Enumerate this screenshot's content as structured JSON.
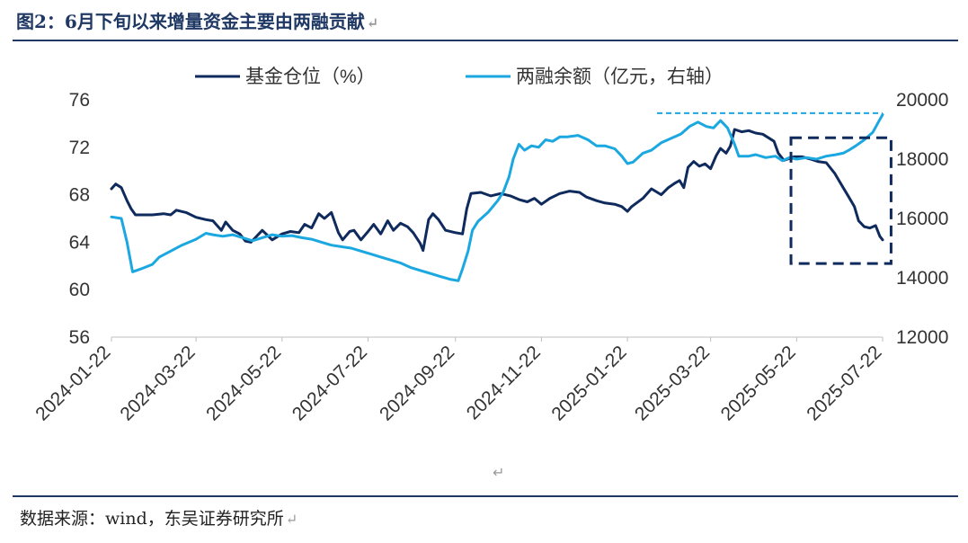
{
  "title": "图2：6月下旬以来增量资金主要由两融贡献",
  "source": "数据来源：wind，东吴证券研究所",
  "return_mark": "↵",
  "chart_data": {
    "type": "line",
    "legend_placement": "top",
    "grid": false,
    "x_ticks": [
      "2024-01-22",
      "2024-03-22",
      "2024-05-22",
      "2024-07-22",
      "2024-09-22",
      "2024-11-22",
      "2025-01-22",
      "2025-03-22",
      "2025-05-22",
      "2025-07-22"
    ],
    "x_range": [
      "2024-01-22",
      "2025-07-22"
    ],
    "y_left": {
      "ticks": [
        56,
        60,
        64,
        68,
        72,
        76
      ],
      "range": [
        56,
        76
      ]
    },
    "y_right": {
      "ticks": [
        12000,
        14000,
        16000,
        18000,
        20000
      ],
      "range": [
        12000,
        20000
      ]
    },
    "series": [
      {
        "name": "基金仓位（%）",
        "axis": "left",
        "color": "#0f2a5c",
        "points": [
          [
            "2024-01-22",
            68.5
          ],
          [
            "2024-01-25",
            68.9
          ],
          [
            "2024-01-29",
            68.6
          ],
          [
            "2024-02-02",
            67.5
          ],
          [
            "2024-02-05",
            66.8
          ],
          [
            "2024-02-08",
            66.3
          ],
          [
            "2024-02-20",
            66.3
          ],
          [
            "2024-02-28",
            66.4
          ],
          [
            "2024-03-04",
            66.3
          ],
          [
            "2024-03-08",
            66.7
          ],
          [
            "2024-03-15",
            66.5
          ],
          [
            "2024-03-22",
            66.1
          ],
          [
            "2024-03-29",
            65.9
          ],
          [
            "2024-04-03",
            65.8
          ],
          [
            "2024-04-09",
            65.0
          ],
          [
            "2024-04-12",
            65.7
          ],
          [
            "2024-04-17",
            65.0
          ],
          [
            "2024-04-22",
            64.7
          ],
          [
            "2024-04-26",
            64.1
          ],
          [
            "2024-04-30",
            64.0
          ],
          [
            "2024-05-08",
            65.0
          ],
          [
            "2024-05-15",
            64.2
          ],
          [
            "2024-05-22",
            64.7
          ],
          [
            "2024-05-28",
            64.9
          ],
          [
            "2024-06-03",
            64.8
          ],
          [
            "2024-06-07",
            65.5
          ],
          [
            "2024-06-12",
            65.2
          ],
          [
            "2024-06-17",
            66.4
          ],
          [
            "2024-06-21",
            66.0
          ],
          [
            "2024-06-26",
            66.5
          ],
          [
            "2024-07-01",
            64.8
          ],
          [
            "2024-07-04",
            64.2
          ],
          [
            "2024-07-09",
            64.9
          ],
          [
            "2024-07-12",
            65.0
          ],
          [
            "2024-07-17",
            64.2
          ],
          [
            "2024-07-22",
            64.9
          ],
          [
            "2024-07-26",
            65.5
          ],
          [
            "2024-07-31",
            64.7
          ],
          [
            "2024-08-05",
            65.8
          ],
          [
            "2024-08-09",
            65.0
          ],
          [
            "2024-08-14",
            65.6
          ],
          [
            "2024-08-19",
            65.3
          ],
          [
            "2024-08-23",
            64.8
          ],
          [
            "2024-08-28",
            63.9
          ],
          [
            "2024-08-30",
            63.3
          ],
          [
            "2024-09-03",
            65.9
          ],
          [
            "2024-09-06",
            66.4
          ],
          [
            "2024-09-10",
            65.9
          ],
          [
            "2024-09-15",
            65.0
          ],
          [
            "2024-09-22",
            64.8
          ],
          [
            "2024-09-27",
            64.7
          ],
          [
            "2024-09-30",
            66.8
          ],
          [
            "2024-10-03",
            68.1
          ],
          [
            "2024-10-10",
            68.2
          ],
          [
            "2024-10-17",
            67.9
          ],
          [
            "2024-10-24",
            68.1
          ],
          [
            "2024-10-31",
            67.9
          ],
          [
            "2024-11-06",
            67.6
          ],
          [
            "2024-11-12",
            67.4
          ],
          [
            "2024-11-17",
            67.7
          ],
          [
            "2024-11-22",
            67.2
          ],
          [
            "2024-11-28",
            67.7
          ],
          [
            "2024-12-05",
            68.1
          ],
          [
            "2024-12-12",
            68.3
          ],
          [
            "2024-12-19",
            68.2
          ],
          [
            "2024-12-24",
            67.8
          ],
          [
            "2024-12-31",
            67.5
          ],
          [
            "2025-01-06",
            67.3
          ],
          [
            "2025-01-13",
            67.2
          ],
          [
            "2025-01-18",
            67.0
          ],
          [
            "2025-01-22",
            66.6
          ],
          [
            "2025-01-25",
            67.0
          ],
          [
            "2025-02-02",
            67.7
          ],
          [
            "2025-02-08",
            68.5
          ],
          [
            "2025-02-15",
            68.0
          ],
          [
            "2025-02-20",
            68.6
          ],
          [
            "2025-02-25",
            69.0
          ],
          [
            "2025-02-28",
            69.2
          ],
          [
            "2025-03-03",
            68.6
          ],
          [
            "2025-03-06",
            70.3
          ],
          [
            "2025-03-10",
            70.8
          ],
          [
            "2025-03-14",
            70.4
          ],
          [
            "2025-03-18",
            70.6
          ],
          [
            "2025-03-22",
            70.2
          ],
          [
            "2025-03-26",
            71.3
          ],
          [
            "2025-03-29",
            71.9
          ],
          [
            "2025-04-02",
            71.5
          ],
          [
            "2025-04-05",
            72.1
          ],
          [
            "2025-04-08",
            73.5
          ],
          [
            "2025-04-13",
            73.3
          ],
          [
            "2025-04-18",
            73.4
          ],
          [
            "2025-04-23",
            73.2
          ],
          [
            "2025-04-28",
            73.1
          ],
          [
            "2025-05-02",
            72.8
          ],
          [
            "2025-05-06",
            72.5
          ],
          [
            "2025-05-09",
            71.5
          ],
          [
            "2025-05-13",
            70.9
          ],
          [
            "2025-05-20",
            71.2
          ],
          [
            "2025-05-26",
            71.2
          ],
          [
            "2025-06-01",
            71.0
          ],
          [
            "2025-06-06",
            70.8
          ],
          [
            "2025-06-12",
            70.7
          ],
          [
            "2025-06-18",
            69.8
          ],
          [
            "2025-06-21",
            69.2
          ],
          [
            "2025-06-24",
            68.6
          ],
          [
            "2025-06-28",
            67.8
          ],
          [
            "2025-07-02",
            67.0
          ],
          [
            "2025-07-05",
            65.8
          ],
          [
            "2025-07-09",
            65.3
          ],
          [
            "2025-07-13",
            65.2
          ],
          [
            "2025-07-17",
            65.4
          ],
          [
            "2025-07-20",
            64.5
          ],
          [
            "2025-07-22",
            64.2
          ]
        ]
      },
      {
        "name": "两融余额（亿元，右轴）",
        "axis": "right",
        "color": "#1ba7e0",
        "points": [
          [
            "2024-01-22",
            16050
          ],
          [
            "2024-01-29",
            16000
          ],
          [
            "2024-02-02",
            15200
          ],
          [
            "2024-02-06",
            14200
          ],
          [
            "2024-02-12",
            14300
          ],
          [
            "2024-02-20",
            14450
          ],
          [
            "2024-02-25",
            14700
          ],
          [
            "2024-03-04",
            14900
          ],
          [
            "2024-03-12",
            15100
          ],
          [
            "2024-03-22",
            15300
          ],
          [
            "2024-03-29",
            15500
          ],
          [
            "2024-04-03",
            15450
          ],
          [
            "2024-04-10",
            15400
          ],
          [
            "2024-04-17",
            15450
          ],
          [
            "2024-04-24",
            15350
          ],
          [
            "2024-05-01",
            15250
          ],
          [
            "2024-05-08",
            15350
          ],
          [
            "2024-05-15",
            15450
          ],
          [
            "2024-05-22",
            15400
          ],
          [
            "2024-05-29",
            15420
          ],
          [
            "2024-06-05",
            15350
          ],
          [
            "2024-06-12",
            15300
          ],
          [
            "2024-06-19",
            15200
          ],
          [
            "2024-06-26",
            15100
          ],
          [
            "2024-07-03",
            15050
          ],
          [
            "2024-07-10",
            15000
          ],
          [
            "2024-07-17",
            14900
          ],
          [
            "2024-07-24",
            14800
          ],
          [
            "2024-07-31",
            14700
          ],
          [
            "2024-08-07",
            14600
          ],
          [
            "2024-08-14",
            14500
          ],
          [
            "2024-08-21",
            14350
          ],
          [
            "2024-08-28",
            14250
          ],
          [
            "2024-09-04",
            14150
          ],
          [
            "2024-09-11",
            14050
          ],
          [
            "2024-09-18",
            13950
          ],
          [
            "2024-09-24",
            13900
          ],
          [
            "2024-09-27",
            14300
          ],
          [
            "2024-10-01",
            14900
          ],
          [
            "2024-10-04",
            15600
          ],
          [
            "2024-10-08",
            15900
          ],
          [
            "2024-10-15",
            16200
          ],
          [
            "2024-10-22",
            16600
          ],
          [
            "2024-10-26",
            16900
          ],
          [
            "2024-10-30",
            17400
          ],
          [
            "2024-11-02",
            18000
          ],
          [
            "2024-11-06",
            18500
          ],
          [
            "2024-11-10",
            18300
          ],
          [
            "2024-11-15",
            18450
          ],
          [
            "2024-11-20",
            18400
          ],
          [
            "2024-11-25",
            18650
          ],
          [
            "2024-11-30",
            18600
          ],
          [
            "2024-12-05",
            18750
          ],
          [
            "2024-12-10",
            18750
          ],
          [
            "2024-12-18",
            18800
          ],
          [
            "2024-12-25",
            18650
          ],
          [
            "2024-12-31",
            18450
          ],
          [
            "2025-01-06",
            18450
          ],
          [
            "2025-01-13",
            18350
          ],
          [
            "2025-01-18",
            18100
          ],
          [
            "2025-01-22",
            17850
          ],
          [
            "2025-01-26",
            17900
          ],
          [
            "2025-02-02",
            18200
          ],
          [
            "2025-02-08",
            18300
          ],
          [
            "2025-02-15",
            18550
          ],
          [
            "2025-02-22",
            18700
          ],
          [
            "2025-03-01",
            18850
          ],
          [
            "2025-03-07",
            19100
          ],
          [
            "2025-03-13",
            19250
          ],
          [
            "2025-03-19",
            19100
          ],
          [
            "2025-03-24",
            19050
          ],
          [
            "2025-03-29",
            19300
          ],
          [
            "2025-04-03",
            19050
          ],
          [
            "2025-04-08",
            18500
          ],
          [
            "2025-04-11",
            18100
          ],
          [
            "2025-04-18",
            18100
          ],
          [
            "2025-04-23",
            18150
          ],
          [
            "2025-04-30",
            18050
          ],
          [
            "2025-05-07",
            18100
          ],
          [
            "2025-05-12",
            17950
          ],
          [
            "2025-05-17",
            18050
          ],
          [
            "2025-05-22",
            18000
          ],
          [
            "2025-05-29",
            18050
          ],
          [
            "2025-06-05",
            18000
          ],
          [
            "2025-06-12",
            18100
          ],
          [
            "2025-06-19",
            18150
          ],
          [
            "2025-06-24",
            18200
          ],
          [
            "2025-06-28",
            18300
          ],
          [
            "2025-07-03",
            18450
          ],
          [
            "2025-07-09",
            18650
          ],
          [
            "2025-07-15",
            18900
          ],
          [
            "2025-07-19",
            19250
          ],
          [
            "2025-07-22",
            19500
          ]
        ]
      }
    ],
    "annotations": [
      {
        "type": "hline",
        "axis": "right",
        "value": 19550,
        "from": "2025-02-12",
        "to": "2025-07-22",
        "style": "dashed",
        "color": "#1ba7e0"
      },
      {
        "type": "rect",
        "axis": "left",
        "x_from": "2025-05-18",
        "x_to": "2025-07-28",
        "y_from": 62.2,
        "y_to": 72.8,
        "style": "dashed",
        "color": "#0f2a5c"
      }
    ]
  }
}
